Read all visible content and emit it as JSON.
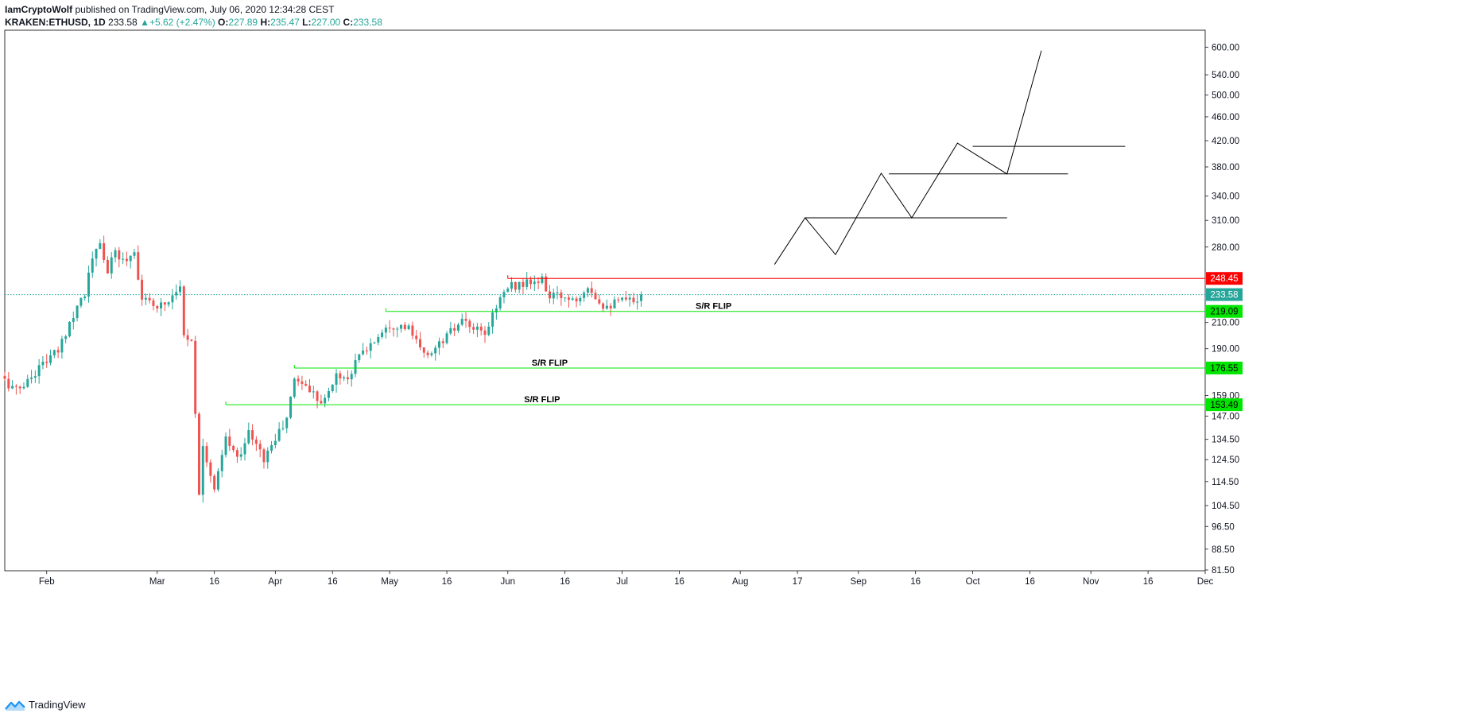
{
  "header": {
    "author": "IamCryptoWolf",
    "published": "published on TradingView.com, July 06, 2020 12:34:28 CEST",
    "symbol": "KRAKEN:ETHUSD, 1D",
    "last": "233.58",
    "change": "+5.62 (+2.47%)",
    "change_arrow": "▲",
    "o_label": "O:",
    "o": "227.89",
    "h_label": "H:",
    "h": "235.47",
    "l_label": "L:",
    "l": "227.00",
    "c_label": "C:",
    "c": "233.58"
  },
  "footer": {
    "brand": "TradingView",
    "logo_icon": "tradingview-logo-icon"
  },
  "colors": {
    "up": "#26a69a",
    "down": "#ef5350",
    "support": "#00e600",
    "resistance": "#ff0000",
    "last_tag": "#26a69a",
    "drawing": "#000000"
  },
  "chart_data": {
    "type": "candlestick",
    "symbol": "KRAKEN:ETHUSD",
    "interval": "1D",
    "y_scale": "log",
    "ylim": [
      81.5,
      640
    ],
    "y_ticks": [
      600,
      540,
      500,
      460,
      420,
      380,
      340,
      310,
      280,
      210,
      190,
      159,
      147,
      134.5,
      124.5,
      114.5,
      104.5,
      96.5,
      88.5,
      81.5
    ],
    "y_tick_labels": [
      "600.00",
      "540.00",
      "500.00",
      "460.00",
      "420.00",
      "380.00",
      "340.00",
      "310.00",
      "280.00",
      "210.00",
      "190.00",
      "159.00",
      "147.00",
      "134.50",
      "124.50",
      "114.50",
      "104.50",
      "96.50",
      "88.50",
      "81.50"
    ],
    "x_range": [
      "2020-01-21",
      "2020-12-01"
    ],
    "x_ticks": [
      {
        "date": "2020-02-01",
        "label": "Feb"
      },
      {
        "date": "2020-03-01",
        "label": "Mar"
      },
      {
        "date": "2020-03-16",
        "label": "16"
      },
      {
        "date": "2020-04-01",
        "label": "Apr"
      },
      {
        "date": "2020-04-16",
        "label": "16"
      },
      {
        "date": "2020-05-01",
        "label": "May"
      },
      {
        "date": "2020-05-16",
        "label": "16"
      },
      {
        "date": "2020-06-01",
        "label": "Jun"
      },
      {
        "date": "2020-06-16",
        "label": "16"
      },
      {
        "date": "2020-07-01",
        "label": "Jul"
      },
      {
        "date": "2020-07-16",
        "label": "16"
      },
      {
        "date": "2020-08-01",
        "label": "Aug"
      },
      {
        "date": "2020-08-16",
        "label": "17"
      },
      {
        "date": "2020-09-01",
        "label": "Sep"
      },
      {
        "date": "2020-09-16",
        "label": "16"
      },
      {
        "date": "2020-10-01",
        "label": "Oct"
      },
      {
        "date": "2020-10-16",
        "label": "16"
      },
      {
        "date": "2020-11-01",
        "label": "Nov"
      },
      {
        "date": "2020-11-16",
        "label": "16"
      },
      {
        "date": "2020-12-01",
        "label": "Dec"
      }
    ],
    "close_path": [
      [
        "2020-01-21",
        168
      ],
      [
        "2020-01-24",
        162
      ],
      [
        "2020-01-27",
        168
      ],
      [
        "2020-01-31",
        180
      ],
      [
        "2020-02-04",
        188
      ],
      [
        "2020-02-07",
        210
      ],
      [
        "2020-02-09",
        225
      ],
      [
        "2020-02-11",
        235
      ],
      [
        "2020-02-13",
        268
      ],
      [
        "2020-02-15",
        282
      ],
      [
        "2020-02-17",
        255
      ],
      [
        "2020-02-19",
        275
      ],
      [
        "2020-02-21",
        265
      ],
      [
        "2020-02-24",
        275
      ],
      [
        "2020-02-26",
        230
      ],
      [
        "2020-02-28",
        225
      ],
      [
        "2020-03-02",
        225
      ],
      [
        "2020-03-04",
        228
      ],
      [
        "2020-03-06",
        240
      ],
      [
        "2020-03-07",
        238
      ],
      [
        "2020-03-08",
        200
      ],
      [
        "2020-03-10",
        198
      ],
      [
        "2020-03-12",
        110
      ],
      [
        "2020-03-13",
        133
      ],
      [
        "2020-03-16",
        110
      ],
      [
        "2020-03-19",
        135
      ],
      [
        "2020-03-22",
        125
      ],
      [
        "2020-03-25",
        138
      ],
      [
        "2020-03-29",
        125
      ],
      [
        "2020-04-01",
        135
      ],
      [
        "2020-04-04",
        145
      ],
      [
        "2020-04-06",
        170
      ],
      [
        "2020-04-09",
        165
      ],
      [
        "2020-04-12",
        158
      ],
      [
        "2020-04-14",
        156
      ],
      [
        "2020-04-17",
        172
      ],
      [
        "2020-04-20",
        170
      ],
      [
        "2020-04-23",
        185
      ],
      [
        "2020-04-27",
        196
      ],
      [
        "2020-04-30",
        208
      ],
      [
        "2020-05-03",
        208
      ],
      [
        "2020-05-06",
        205
      ],
      [
        "2020-05-10",
        185
      ],
      [
        "2020-05-13",
        190
      ],
      [
        "2020-05-16",
        200
      ],
      [
        "2020-05-20",
        210
      ],
      [
        "2020-05-23",
        205
      ],
      [
        "2020-05-26",
        200
      ],
      [
        "2020-05-29",
        225
      ],
      [
        "2020-06-01",
        240
      ],
      [
        "2020-06-04",
        243
      ],
      [
        "2020-06-07",
        244
      ],
      [
        "2020-06-10",
        246
      ],
      [
        "2020-06-12",
        232
      ],
      [
        "2020-06-16",
        232
      ],
      [
        "2020-06-19",
        230
      ],
      [
        "2020-06-22",
        243
      ],
      [
        "2020-06-24",
        232
      ],
      [
        "2020-06-26",
        225
      ],
      [
        "2020-06-28",
        225
      ],
      [
        "2020-07-01",
        228
      ],
      [
        "2020-07-04",
        228
      ],
      [
        "2020-07-06",
        233.58
      ]
    ],
    "levels": [
      {
        "name": "resistance",
        "value": 248.45,
        "label": "248.45",
        "from": "2020-06-01",
        "color": "#ff0000"
      },
      {
        "name": "sr-flip-1",
        "value": 219.09,
        "label": "219.09",
        "from": "2020-04-30",
        "color": "#00e600",
        "text": "S/R FLIP",
        "text_date": "2020-07-25"
      },
      {
        "name": "sr-flip-2",
        "value": 176.55,
        "label": "176.55",
        "from": "2020-04-06",
        "color": "#00e600",
        "text": "S/R FLIP",
        "text_date": "2020-06-12"
      },
      {
        "name": "sr-flip-3",
        "value": 153.49,
        "label": "153.49",
        "from": "2020-03-19",
        "color": "#00e600",
        "text": "S/R FLIP",
        "text_date": "2020-06-10"
      }
    ],
    "last_price": {
      "value": 233.58,
      "label": "233.58"
    },
    "projection_path": [
      [
        "2020-08-10",
        262
      ],
      [
        "2020-08-18",
        313
      ],
      [
        "2020-08-26",
        272
      ],
      [
        "2020-09-07",
        371
      ],
      [
        "2020-09-15",
        313
      ],
      [
        "2020-09-27",
        416
      ],
      [
        "2020-10-10",
        370
      ],
      [
        "2020-10-19",
        592
      ]
    ],
    "projection_levels": [
      {
        "value": 313,
        "from": "2020-08-18",
        "to": "2020-10-10"
      },
      {
        "value": 370,
        "from": "2020-09-09",
        "to": "2020-10-26"
      },
      {
        "value": 411,
        "from": "2020-10-01",
        "to": "2020-11-10"
      }
    ]
  }
}
